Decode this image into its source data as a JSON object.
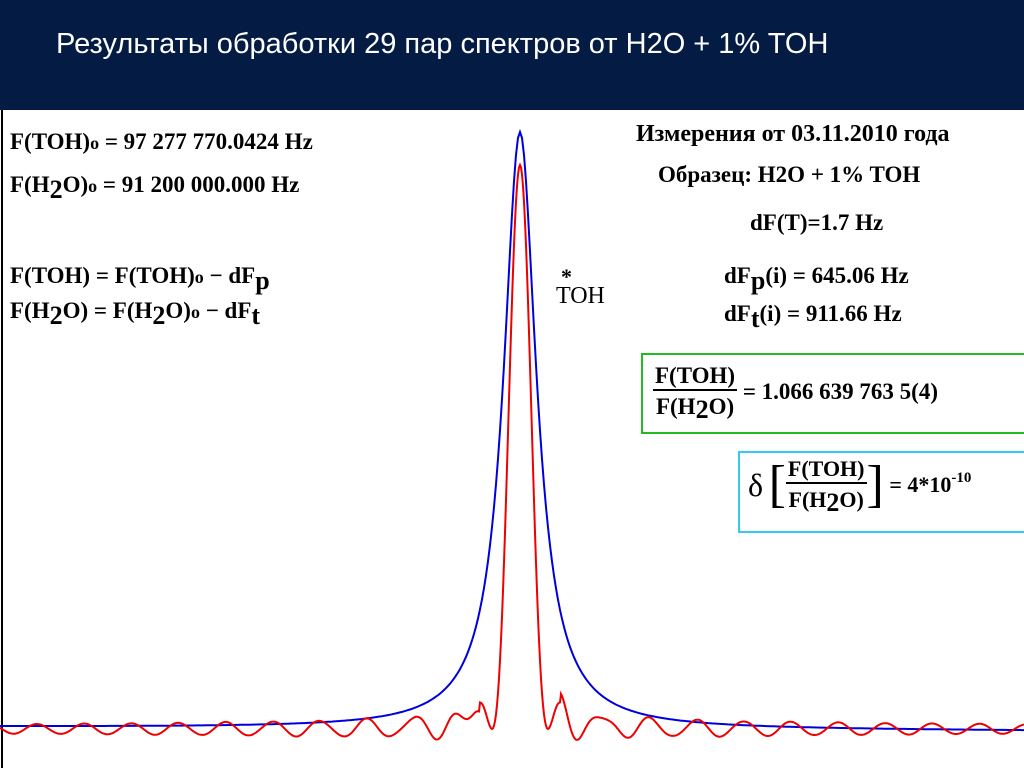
{
  "header": {
    "title": "Результаты обработки 29 пар спектров от H2O + 1% TOH"
  },
  "left": {
    "eq1_lhs": "F(TOH)",
    "eq1_sub": "o",
    "eq1_rhs": "= 97 277 770.0424 Hz",
    "eq2_lhs_a": "F(H",
    "eq2_lhs_sub": "2",
    "eq2_lhs_b": "O)",
    "eq2_sub": "o",
    "eq2_rhs": "= 91 200 000.000 Hz",
    "eq3_a": "F(TOH) = F(TOH)",
    "eq3_sub": "o",
    "eq3_b": "− dF",
    "eq3_tail": "p",
    "eq4_a": "F(H",
    "eq4_sub1": "2",
    "eq4_b": "O) = F(H",
    "eq4_sub2": "2",
    "eq4_c": "O)",
    "eq4_sub3": "o",
    "eq4_d": "− dF",
    "eq4_tail": "t"
  },
  "peak_label": {
    "star": "*",
    "text": "TOH"
  },
  "right": {
    "date": "Измерения от 03.11.2010 года",
    "sample": "Образец: H2O + 1% TOH",
    "dft_a": "dF(T)",
    "dft_b": "=1.7 Hz",
    "dfp_a": "dF",
    "dfp_sub": "p",
    "dfp_b": "(i) = 645.06 Hz",
    "dft2_a": "dF",
    "dft2_sub": "t",
    "dft2_b": "(i) = 911.66 Hz"
  },
  "ratio_box": {
    "num": "F(TOH)",
    "den_a": "F(H",
    "den_sub": "2",
    "den_b": "O)",
    "value": "= 1.066 639 763 5(4)",
    "border_color": "#22bb22"
  },
  "delta_box": {
    "delta": "δ",
    "num": "F(TOH)",
    "den_a": "F(H",
    "den_sub": "2",
    "den_b": "O)",
    "value": "= 4",
    "star": "*",
    "base": "10",
    "exp": "-10",
    "border_color": "#33ccee"
  },
  "chart_data": {
    "type": "line",
    "series": [
      {
        "color": "#0000dd",
        "shape": "lorentzian-peak"
      },
      {
        "color": "#ee0000",
        "shape": "sinc-oscillating-peak"
      }
    ],
    "grid": false
  }
}
